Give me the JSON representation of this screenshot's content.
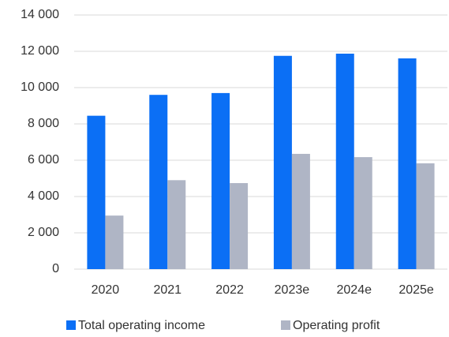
{
  "chart_data": {
    "type": "bar",
    "categories": [
      "2020",
      "2021",
      "2022",
      "2023e",
      "2024e",
      "2025e"
    ],
    "series": [
      {
        "name": "Total operating income",
        "color": "#0b6ff5",
        "values": [
          8450,
          9600,
          9700,
          11750,
          11870,
          11610
        ]
      },
      {
        "name": "Operating profit",
        "color": "#afb5c5",
        "values": [
          2950,
          4900,
          4740,
          6350,
          6170,
          5830
        ]
      }
    ],
    "ylim": [
      0,
      14000
    ],
    "yticks": [
      0,
      {
        "value": 2000,
        "label": "2 000"
      },
      {
        "value": 4000,
        "label": "4 000"
      },
      {
        "value": 6000,
        "label": "6 000"
      },
      {
        "value": 8000,
        "label": "8 000"
      },
      {
        "value": 10000,
        "label": "10 000"
      },
      {
        "value": 12000,
        "label": "12 000"
      },
      {
        "value": 14000,
        "label": "14 000"
      }
    ],
    "grid": true,
    "legend": "bottom"
  }
}
